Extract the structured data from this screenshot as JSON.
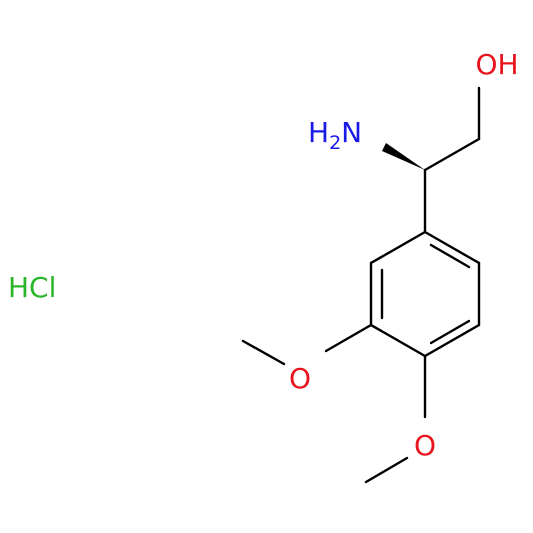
{
  "atoms": {
    "hydroxyl": "OH",
    "amine": {
      "parts": [
        "H",
        "2",
        "N"
      ]
    },
    "salt": "HCl",
    "methoxy_1": "O",
    "methoxy_2": "O"
  }
}
